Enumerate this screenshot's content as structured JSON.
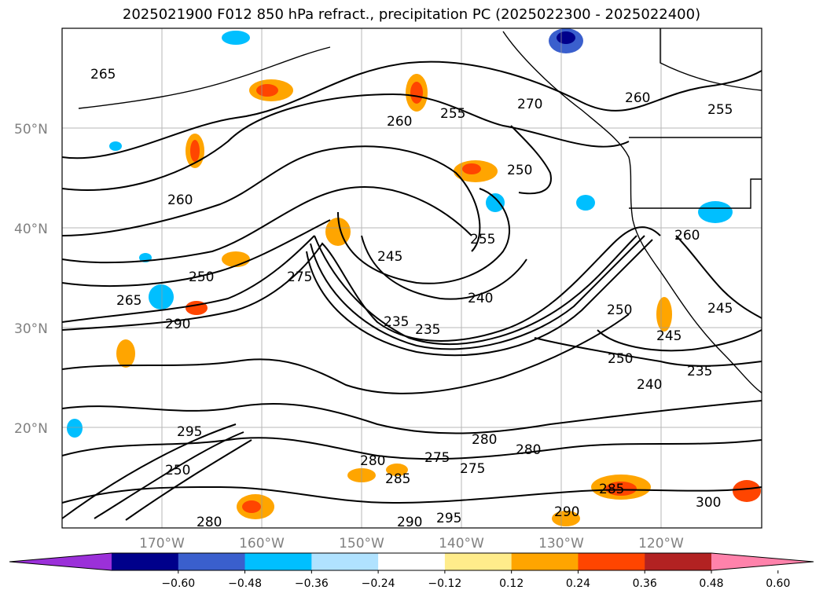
{
  "title": "2025021900 F012 850 hPa refract., precipitation PC (2025022300 - 2025022400)",
  "map": {
    "lat_labels": [
      "50°N",
      "40°N",
      "30°N",
      "20°N"
    ],
    "lon_labels": [
      "170°W",
      "160°W",
      "150°W",
      "140°W",
      "130°W",
      "120°W"
    ],
    "contour_labels": [
      "265",
      "260",
      "255",
      "250",
      "245",
      "240",
      "235",
      "270",
      "275",
      "280",
      "285",
      "290",
      "295",
      "300"
    ]
  },
  "colorbar": {
    "ticks": [
      "−0.60",
      "−0.48",
      "−0.36",
      "−0.24",
      "−0.12",
      "0.12",
      "0.24",
      "0.36",
      "0.48",
      "0.60"
    ],
    "colors": [
      "#9b30d9",
      "#00008b",
      "#3a5fcd",
      "#00bfff",
      "#b0e2ff",
      "#ffffff",
      "#ffec8b",
      "#ffa500",
      "#ff4500",
      "#b22222",
      "#ff82ab"
    ]
  }
}
